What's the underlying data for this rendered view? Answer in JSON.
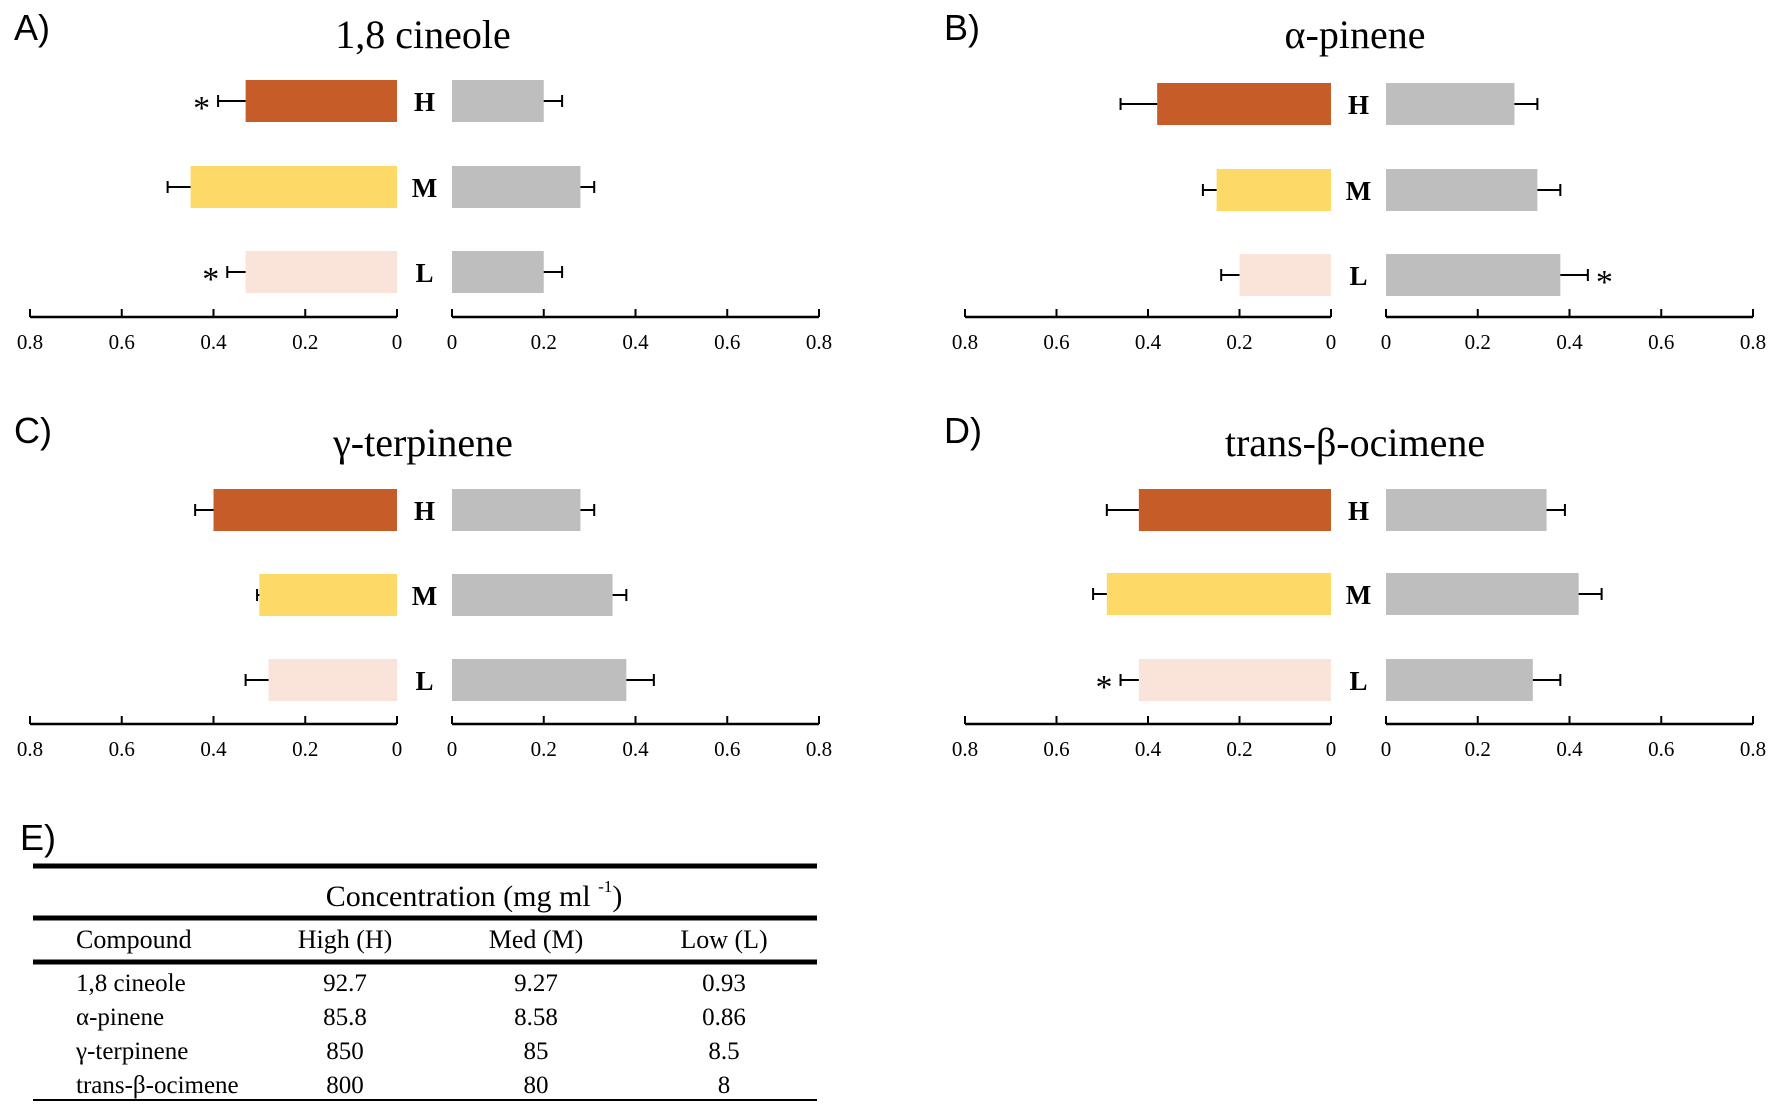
{
  "chart_data": [
    {
      "type": "bar",
      "panel": "A)",
      "title": "1,8 cineole",
      "categories": [
        "H",
        "M",
        "L"
      ],
      "series": [
        {
          "values": [
            0.33,
            0.45,
            0.33
          ],
          "errors": [
            0.06,
            0.05,
            0.04
          ],
          "stars": [
            true,
            false,
            true
          ]
        },
        {
          "values": [
            0.2,
            0.28,
            0.2
          ],
          "errors": [
            0.04,
            0.03,
            0.04
          ],
          "stars": [
            false,
            false,
            false
          ]
        }
      ],
      "colors": [
        "#C65C28",
        "#FDD967",
        "#FAE3D8"
      ],
      "right_color": "#BEBEBE",
      "xlim": [
        0,
        0.8
      ],
      "ticks": [
        "0.8",
        "0.6",
        "0.4",
        "0.2",
        "0",
        "0",
        "0.2",
        "0.4",
        "0.6",
        "0.8"
      ]
    },
    {
      "type": "bar",
      "panel": "B)",
      "title": "α-pinene",
      "categories": [
        "H",
        "M",
        "L"
      ],
      "series": [
        {
          "values": [
            0.38,
            0.25,
            0.2
          ],
          "errors": [
            0.08,
            0.03,
            0.04
          ],
          "stars": [
            false,
            false,
            false
          ]
        },
        {
          "values": [
            0.28,
            0.33,
            0.38
          ],
          "errors": [
            0.05,
            0.05,
            0.06
          ],
          "stars": [
            false,
            false,
            true
          ]
        }
      ],
      "colors": [
        "#C65C28",
        "#FDD967",
        "#FAE3D8"
      ],
      "right_color": "#BEBEBE",
      "xlim": [
        0,
        0.8
      ],
      "ticks": [
        "0.8",
        "0.6",
        "0.4",
        "0.2",
        "0",
        "0",
        "0.2",
        "0.4",
        "0.6",
        "0.8"
      ]
    },
    {
      "type": "bar",
      "panel": "C)",
      "title": "γ-terpinene",
      "categories": [
        "H",
        "M",
        "L"
      ],
      "series": [
        {
          "values": [
            0.4,
            0.3,
            0.28
          ],
          "errors": [
            0.04,
            0.005,
            0.05
          ],
          "stars": [
            false,
            false,
            false
          ]
        },
        {
          "values": [
            0.28,
            0.35,
            0.38
          ],
          "errors": [
            0.03,
            0.03,
            0.06
          ],
          "stars": [
            false,
            false,
            false
          ]
        }
      ],
      "colors": [
        "#C65C28",
        "#FDD967",
        "#FAE3D8"
      ],
      "right_color": "#BEBEBE",
      "xlim": [
        0,
        0.8
      ],
      "ticks": [
        "0.8",
        "0.6",
        "0.4",
        "0.2",
        "0",
        "0",
        "0.2",
        "0.4",
        "0.6",
        "0.8"
      ]
    },
    {
      "type": "bar",
      "panel": "D)",
      "title": "trans-β-ocimene",
      "categories": [
        "H",
        "M",
        "L"
      ],
      "series": [
        {
          "values": [
            0.42,
            0.49,
            0.42
          ],
          "errors": [
            0.07,
            0.03,
            0.04
          ],
          "stars": [
            false,
            false,
            true
          ]
        },
        {
          "values": [
            0.35,
            0.42,
            0.32
          ],
          "errors": [
            0.04,
            0.05,
            0.06
          ],
          "stars": [
            false,
            false,
            false
          ]
        }
      ],
      "colors": [
        "#C65C28",
        "#FDD967",
        "#FAE3D8"
      ],
      "right_color": "#BEBEBE",
      "xlim": [
        0,
        0.8
      ],
      "ticks": [
        "0.8",
        "0.6",
        "0.4",
        "0.2",
        "0",
        "0",
        "0.2",
        "0.4",
        "0.6",
        "0.8"
      ]
    }
  ],
  "star_symbol": "*",
  "table": {
    "panel": "E)",
    "header_text": "Concentration (mg ml",
    "header_sup": "-1",
    "header_close": ")",
    "columns": [
      "Compound",
      "High (H)",
      "Med (M)",
      "Low (L)"
    ],
    "rows": [
      [
        "1,8 cineole",
        "92.7",
        "9.27",
        "0.93"
      ],
      [
        "α-pinene",
        "85.8",
        "8.58",
        "0.86"
      ],
      [
        "γ-terpinene",
        "850",
        "85",
        "8.5"
      ],
      [
        "trans-β-ocimene",
        "800",
        "80",
        "8"
      ]
    ]
  }
}
